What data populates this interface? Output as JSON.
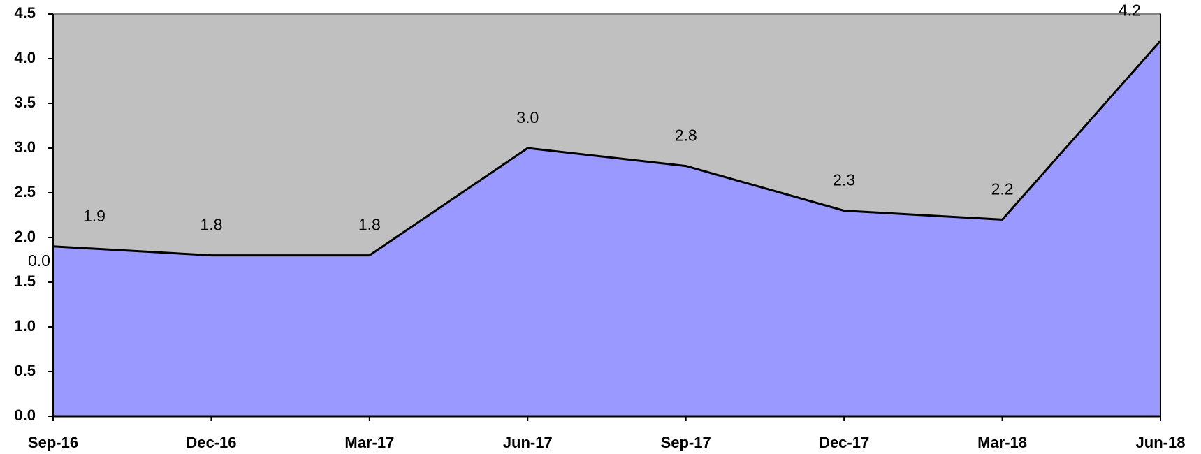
{
  "chart_data": {
    "type": "area",
    "categories": [
      "Sep-16",
      "Dec-16",
      "Mar-17",
      "Jun-17",
      "Sep-17",
      "Dec-17",
      "Mar-18",
      "Jun-18"
    ],
    "values": [
      1.9,
      1.8,
      1.8,
      3.0,
      2.8,
      2.3,
      2.2,
      4.2
    ],
    "value_labels": [
      "1.9",
      "1.8",
      "1.8",
      "3.0",
      "2.8",
      "2.3",
      "2.2",
      "4.2"
    ],
    "color": "#9999ff",
    "background": "#c0c0c0",
    "annotation": "0.0",
    "ylim": [
      0,
      4.5
    ],
    "yticks": [
      {
        "value": 0,
        "label": "0.0"
      },
      0.5,
      {
        "value": 1,
        "label": "1.0"
      },
      1.5,
      {
        "value": 2,
        "label": "2.0"
      },
      2.5,
      {
        "value": 3,
        "label": "3.0"
      },
      3.5,
      {
        "value": 4,
        "label": "4.0"
      },
      4.5
    ]
  }
}
